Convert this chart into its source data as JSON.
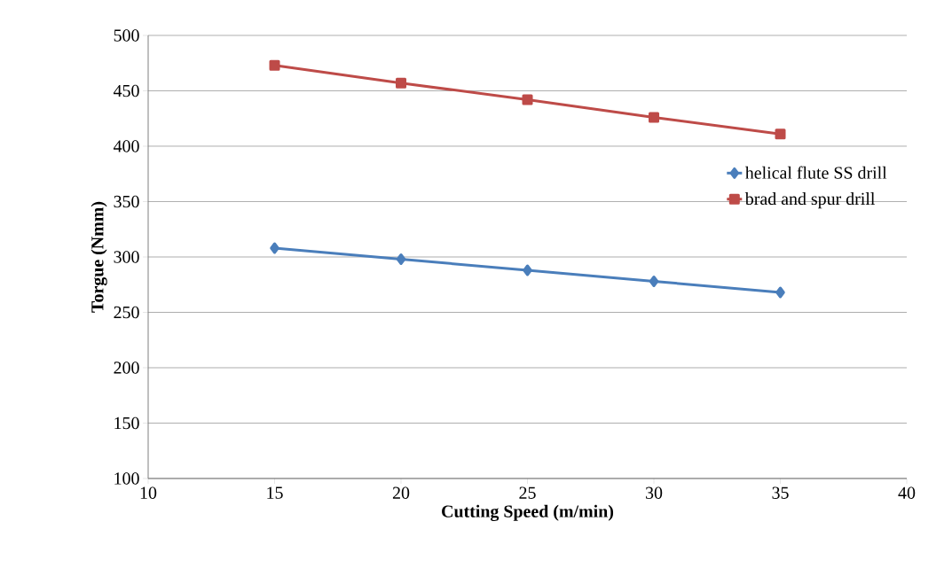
{
  "chart_data": {
    "type": "line",
    "xlabel": "Cutting Speed (m/min)",
    "ylabel": "Torgue (Nmm)",
    "x": [
      15,
      20,
      25,
      30,
      35
    ],
    "series": [
      {
        "name": "helical flute SS drill",
        "color": "#4a7ebb",
        "marker": "diamond",
        "values": [
          308,
          298,
          288,
          278,
          268
        ]
      },
      {
        "name": "brad and spur drill",
        "color": "#be4b48",
        "marker": "square",
        "values": [
          473,
          457,
          442,
          426,
          411
        ]
      }
    ],
    "xlim": [
      10,
      40
    ],
    "xticks": [
      10,
      15,
      20,
      25,
      30,
      35,
      40
    ],
    "ylim": [
      100,
      500
    ],
    "yticks": [
      100,
      150,
      200,
      250,
      300,
      350,
      400,
      450,
      500
    ],
    "grid": "y",
    "legend": "right"
  }
}
